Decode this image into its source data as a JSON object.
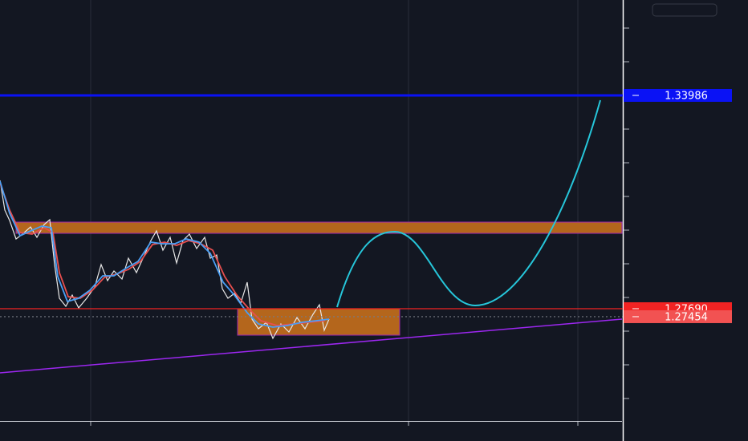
{
  "chart_data": {
    "type": "price-lines",
    "ylim": [
      1.24376,
      1.36802
    ],
    "price_lines": [
      {
        "value": 1.33986,
        "label": "1.33986",
        "color": "#0a12f5",
        "dashed": false
      },
      {
        "value": 1.2769,
        "label": "1.27690",
        "color": "#f22323",
        "dashed": false
      },
      {
        "value": 1.27454,
        "label": "1.27454",
        "color": "#f25252",
        "dashed": true
      }
    ]
  }
}
